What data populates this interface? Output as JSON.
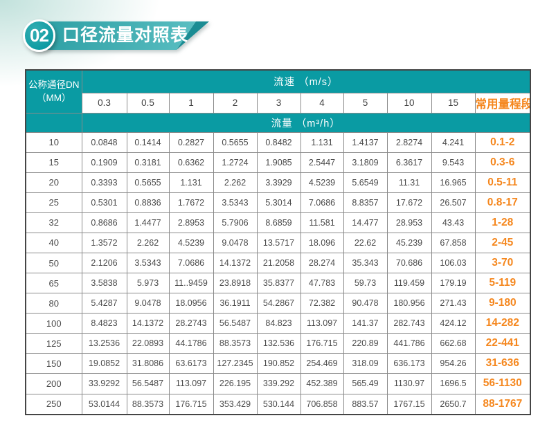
{
  "header": {
    "section_number": "02",
    "section_title": "口径流量对照表"
  },
  "colors": {
    "teal": "#0A9BA3",
    "orange": "#F5871E"
  },
  "table": {
    "corner_line1": "公称通径DN",
    "corner_line2": "（MM）",
    "velocity_group_label": "流速 （m/s）",
    "flow_group_label": "流量 （m³/h）",
    "range_column_label": "常用量程段",
    "velocity_columns": [
      "0.3",
      "0.5",
      "1",
      "2",
      "3",
      "4",
      "5",
      "10",
      "15"
    ],
    "rows": [
      {
        "dn": "10",
        "flows": [
          "0.0848",
          "0.1414",
          "0.2827",
          "0.5655",
          "0.8482",
          "1.131",
          "1.4137",
          "2.8274",
          "4.241"
        ],
        "range": "0.1-2"
      },
      {
        "dn": "15",
        "flows": [
          "0.1909",
          "0.3181",
          "0.6362",
          "1.2724",
          "1.9085",
          "2.5447",
          "3.1809",
          "6.3617",
          "9.543"
        ],
        "range": "0.3-6"
      },
      {
        "dn": "20",
        "flows": [
          "0.3393",
          "0.5655",
          "1.131",
          "2.262",
          "3.3929",
          "4.5239",
          "5.6549",
          "11.31",
          "16.965"
        ],
        "range": "0.5-11"
      },
      {
        "dn": "25",
        "flows": [
          "0.5301",
          "0.8836",
          "1.7672",
          "3.5343",
          "5.3014",
          "7.0686",
          "8.8357",
          "17.672",
          "26.507"
        ],
        "range": "0.8-17"
      },
      {
        "dn": "32",
        "flows": [
          "0.8686",
          "1.4477",
          "2.8953",
          "5.7906",
          "8.6859",
          "11.581",
          "14.477",
          "28.953",
          "43.43"
        ],
        "range": "1-28"
      },
      {
        "dn": "40",
        "flows": [
          "1.3572",
          "2.262",
          "4.5239",
          "9.0478",
          "13.5717",
          "18.096",
          "22.62",
          "45.239",
          "67.858"
        ],
        "range": "2-45"
      },
      {
        "dn": "50",
        "flows": [
          "2.1206",
          "3.5343",
          "7.0686",
          "14.1372",
          "21.2058",
          "28.274",
          "35.343",
          "70.686",
          "106.03"
        ],
        "range": "3-70"
      },
      {
        "dn": "65",
        "flows": [
          "3.5838",
          "5.973",
          "11..9459",
          "23.8918",
          "35.8377",
          "47.783",
          "59.73",
          "119.459",
          "179.19"
        ],
        "range": "5-119"
      },
      {
        "dn": "80",
        "flows": [
          "5.4287",
          "9.0478",
          "18.0956",
          "36.1911",
          "54.2867",
          "72.382",
          "90.478",
          "180.956",
          "271.43"
        ],
        "range": "9-180"
      },
      {
        "dn": "100",
        "flows": [
          "8.4823",
          "14.1372",
          "28.2743",
          "56.5487",
          "84.823",
          "113.097",
          "141.37",
          "282.743",
          "424.12"
        ],
        "range": "14-282"
      },
      {
        "dn": "125",
        "flows": [
          "13.2536",
          "22.0893",
          "44.1786",
          "88.3573",
          "132.536",
          "176.715",
          "220.89",
          "441.786",
          "662.68"
        ],
        "range": "22-441"
      },
      {
        "dn": "150",
        "flows": [
          "19.0852",
          "31.8086",
          "63.6173",
          "127.2345",
          "190.852",
          "254.469",
          "318.09",
          "636.173",
          "954.26"
        ],
        "range": "31-636"
      },
      {
        "dn": "200",
        "flows": [
          "33.9292",
          "56.5487",
          "113.097",
          "226.195",
          "339.292",
          "452.389",
          "565.49",
          "1130.97",
          "1696.5"
        ],
        "range": "56-1130"
      },
      {
        "dn": "250",
        "flows": [
          "53.0144",
          "88.3573",
          "176.715",
          "353.429",
          "530.144",
          "706.858",
          "883.57",
          "1767.15",
          "2650.7"
        ],
        "range": "88-1767"
      }
    ]
  }
}
